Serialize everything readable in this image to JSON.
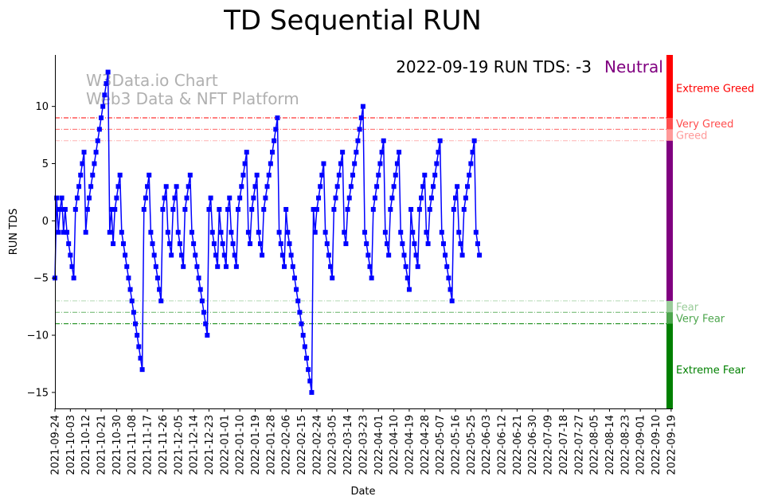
{
  "chart_data": {
    "type": "line",
    "title": "TD Sequential RUN",
    "xlabel": "Date",
    "ylabel": "RUN TDS",
    "ylim": [
      -16.4,
      14.5
    ],
    "xlim": [
      0,
      361
    ],
    "yticks": [
      10,
      5,
      0,
      -5,
      -10,
      -15
    ],
    "ytick_labels": [
      "10",
      "5",
      "0",
      "−5",
      "−10",
      "−15"
    ],
    "xtick_labels": [
      "2021-09-24",
      "2021-10-03",
      "2021-10-12",
      "2021-10-21",
      "2021-10-30",
      "2021-11-08",
      "2021-11-17",
      "2021-11-26",
      "2021-12-05",
      "2021-12-14",
      "2021-12-23",
      "2022-01-01",
      "2022-01-10",
      "2022-01-19",
      "2022-01-28",
      "2022-02-06",
      "2022-02-15",
      "2022-02-24",
      "2022-03-05",
      "2022-03-14",
      "2022-03-23",
      "2022-04-01",
      "2022-04-10",
      "2022-04-19",
      "2022-04-28",
      "2022-05-07",
      "2022-05-16",
      "2022-05-25",
      "2022-06-03",
      "2022-06-12",
      "2022-06-21",
      "2022-06-30",
      "2022-07-09",
      "2022-07-18",
      "2022-07-27",
      "2022-08-05",
      "2022-08-14",
      "2022-08-23",
      "2022-09-01",
      "2022-09-10",
      "2022-09-19"
    ],
    "x_start_date": "2021-09-24",
    "series": [
      {
        "name": "RUN TDS",
        "color": "#0000ff",
        "marker": "square",
        "values": [
          -5,
          2,
          -1,
          1,
          2,
          -1,
          1,
          -1,
          -2,
          -3,
          -4,
          -5,
          1,
          2,
          3,
          4,
          5,
          6,
          -1,
          1,
          2,
          3,
          4,
          5,
          6,
          7,
          8,
          9,
          10,
          11,
          12,
          13,
          -1,
          1,
          -2,
          1,
          2,
          3,
          4,
          -1,
          -2,
          -3,
          -4,
          -5,
          -6,
          -7,
          -8,
          -9,
          -10,
          -11,
          -12,
          -13,
          1,
          2,
          3,
          4,
          -1,
          -2,
          -3,
          -4,
          -5,
          -6,
          -7,
          1,
          2,
          3,
          -1,
          -2,
          -3,
          1,
          2,
          3,
          -1,
          -2,
          -3,
          -4,
          1,
          2,
          3,
          4,
          -1,
          -2,
          -3,
          -4,
          -5,
          -6,
          -7,
          -8,
          -9,
          -10,
          1,
          2,
          -1,
          -2,
          -3,
          -4,
          1,
          -1,
          -2,
          -3,
          -4,
          1,
          2,
          -1,
          -2,
          -3,
          -4,
          1,
          2,
          3,
          4,
          5,
          6,
          -1,
          -2,
          1,
          2,
          3,
          4,
          -1,
          -2,
          -3,
          1,
          2,
          3,
          4,
          5,
          6,
          7,
          8,
          9,
          -1,
          -2,
          -3,
          -4,
          1,
          -1,
          -2,
          -3,
          -4,
          -5,
          -6,
          -7,
          -8,
          -9,
          -10,
          -11,
          -12,
          -13,
          -14,
          -15,
          1,
          -1,
          1,
          2,
          3,
          4,
          5,
          -1,
          -2,
          -3,
          -4,
          -5,
          1,
          2,
          3,
          4,
          5,
          6,
          -1,
          -2,
          1,
          2,
          3,
          4,
          5,
          6,
          7,
          8,
          9,
          10,
          -1,
          -2,
          -3,
          -4,
          -5,
          1,
          2,
          3,
          4,
          5,
          6,
          7,
          -1,
          -2,
          -3,
          1,
          2,
          3,
          4,
          5,
          6,
          -1,
          -2,
          -3,
          -4,
          -5,
          -6,
          1,
          -1,
          -2,
          -3,
          -4,
          1,
          2,
          3,
          4,
          -1,
          -2,
          1,
          2,
          3,
          4,
          5,
          6,
          7,
          -1,
          -2,
          -3,
          -4,
          -5,
          -6,
          -7,
          1,
          2,
          3,
          -1,
          -2,
          -3,
          1,
          2,
          3,
          4,
          5,
          6,
          7,
          -1,
          -2,
          -3
        ]
      }
    ],
    "reference_lines": [
      {
        "value": 9,
        "color": "#ff0000",
        "opacity": 1.0
      },
      {
        "value": 8,
        "color": "#ff0000",
        "opacity": 0.6
      },
      {
        "value": 7,
        "color": "#ff0000",
        "opacity": 0.3
      },
      {
        "value": -7,
        "color": "#008000",
        "opacity": 0.3
      },
      {
        "value": -8,
        "color": "#008000",
        "opacity": 0.6
      },
      {
        "value": -9,
        "color": "#008000",
        "opacity": 1.0
      }
    ],
    "zones": [
      {
        "label": "Extreme Greed",
        "from": 9,
        "to": 14.5,
        "color": "#ff0000",
        "label_y": 11.6
      },
      {
        "label": "Very Greed",
        "from": 8,
        "to": 9,
        "color": "#ff4d4d",
        "label_y": 8.5
      },
      {
        "label": "Greed",
        "from": 7,
        "to": 8,
        "color": "#ff9999",
        "label_y": 7.5
      },
      {
        "label": "Neutral",
        "from": -7,
        "to": 7,
        "color": "#800080"
      },
      {
        "label": "Fear",
        "from": -8,
        "to": -7,
        "color": "#99cc99",
        "label_y": -7.5
      },
      {
        "label": "Very Fear",
        "from": -9,
        "to": -8,
        "color": "#4da64d",
        "label_y": -8.5
      },
      {
        "label": "Extreme Fear",
        "from": -16.4,
        "to": -9,
        "color": "#008000",
        "label_y": -13
      }
    ],
    "annotation": {
      "date_text": "2022-09-19",
      "run_text": "RUN TDS: -3",
      "state": "Neutral",
      "state_color": "#800080"
    },
    "watermark": {
      "line1": "W3Data.io Chart",
      "line2": "Web3 Data & NFT Platform",
      "color": "#b0b0b0"
    },
    "grid": false
  }
}
